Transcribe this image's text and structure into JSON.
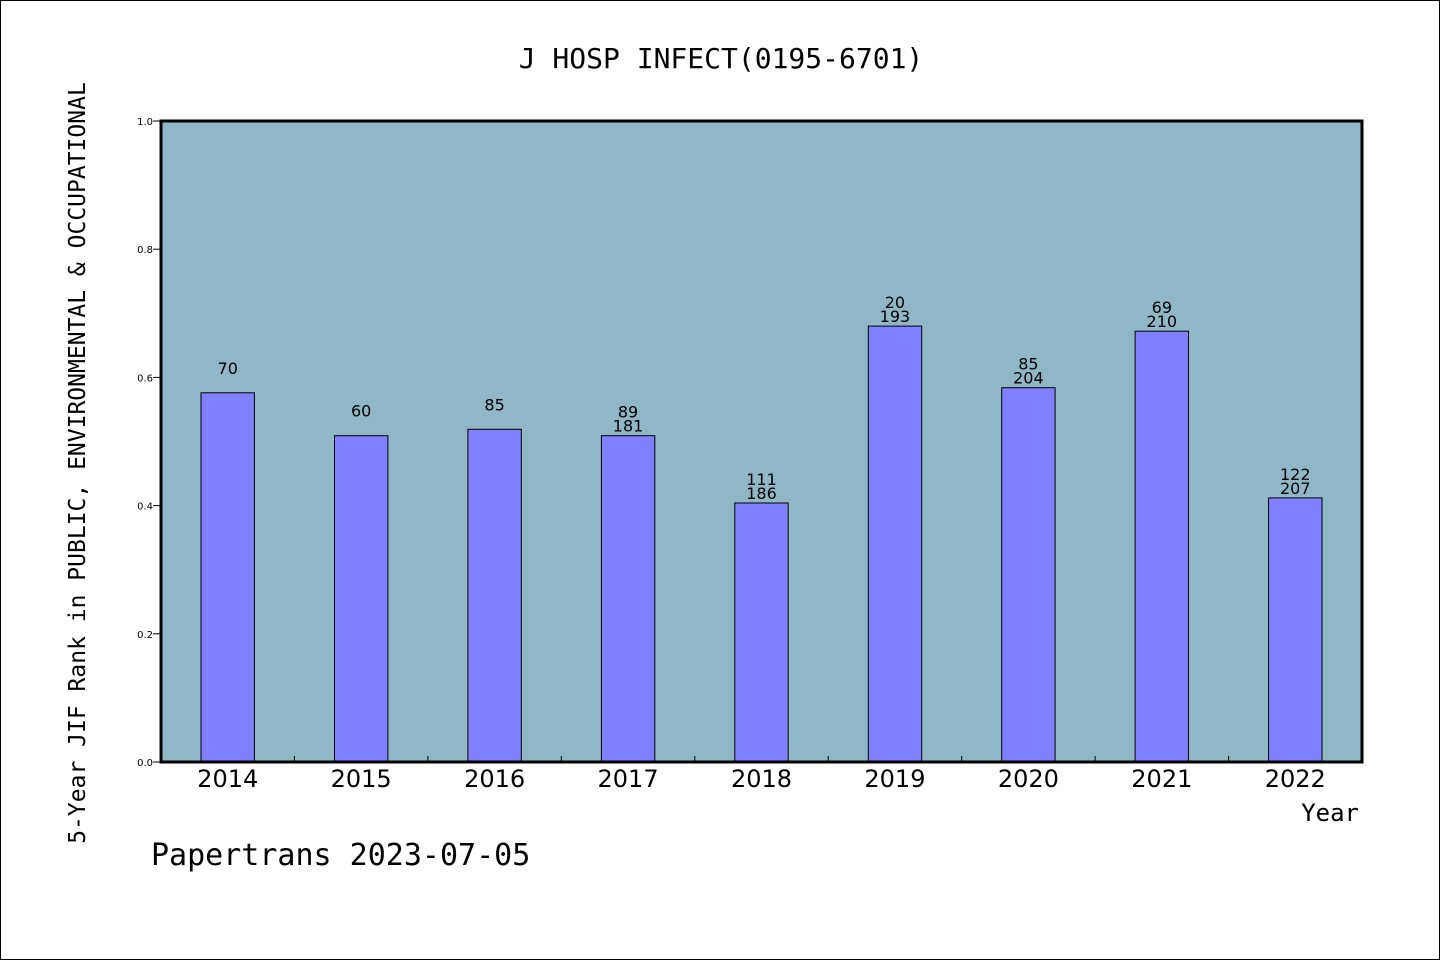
{
  "colors": {
    "plot_background": "#8fb7c6",
    "bar_fill": "#8080ff",
    "bar_stroke": "#000000",
    "axis": "#000000"
  },
  "footer": "Papertrans 2023-07-05",
  "chart_data": {
    "type": "bar",
    "title": "J HOSP INFECT(0195-6701)",
    "xlabel": "Year",
    "ylabel": "5-Year JIF Rank in PUBLIC, ENVIRONMENTAL & OCCUPATIONAL",
    "ylim": [
      0,
      1.0
    ],
    "yticks": [
      "0.0",
      "0.2",
      "0.4",
      "0.6",
      "0.8",
      "1.0"
    ],
    "grid": false,
    "categories": [
      "2014",
      "2015",
      "2016",
      "2017",
      "2018",
      "2019",
      "2020",
      "2021",
      "2022"
    ],
    "values": [
      0.576,
      0.509,
      0.519,
      0.509,
      0.404,
      0.68,
      0.584,
      0.672,
      0.412
    ],
    "rank_labels": [
      "70",
      "60",
      "85",
      "89",
      "111",
      "20",
      "85",
      "69",
      "122"
    ],
    "total_labels": [
      "",
      "",
      "",
      "181",
      "186",
      "193",
      "204",
      "210",
      "207"
    ]
  }
}
